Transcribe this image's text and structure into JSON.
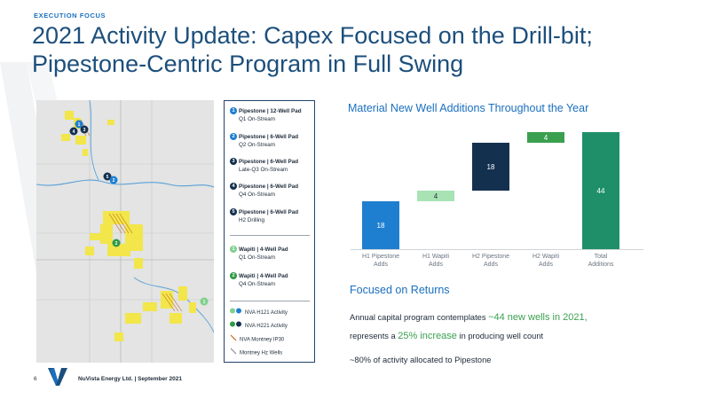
{
  "header": {
    "eyebrow": "EXECUTION FOCUS",
    "title_line1": "2021 Activity Update: Capex Focused on the Drill-bit;",
    "title_line2": "Pipestone-Centric Program in Full Swing"
  },
  "legend": {
    "pads": [
      {
        "num": "1",
        "title": "Pipestone | 12-Well Pad",
        "sub": "Q1 On-Stream",
        "color": "#1e7fd0"
      },
      {
        "num": "2",
        "title": "Pipestone | 6-Well Pad",
        "sub": "Q2 On-Stream",
        "color": "#1e7fd0"
      },
      {
        "num": "3",
        "title": "Pipestone | 6-Well Pad",
        "sub": "Late-Q3 On-Stream",
        "color": "#14304f"
      },
      {
        "num": "4",
        "title": "Pipestone | 6-Well Pad",
        "sub": "Q4 On-Stream",
        "color": "#14304f"
      },
      {
        "num": "5",
        "title": "Pipestone | 6-Well Pad",
        "sub": "H2 Drilling",
        "color": "#14304f"
      },
      {
        "num": "1",
        "title": "Wapiti | 4-Well Pad",
        "sub": "Q1 On-Stream",
        "color": "#7fd08e"
      },
      {
        "num": "2",
        "title": "Wapiti | 4-Well Pad",
        "sub": "Q4 On-Stream",
        "color": "#2e9a45"
      }
    ],
    "keys": [
      {
        "label": "NVA H121 Activity"
      },
      {
        "label": "NVA H221 Activity"
      },
      {
        "label": "NVA Montney IP30"
      },
      {
        "label": "Montney Hz Wells"
      }
    ]
  },
  "chart_title": "Material New Well Additions Throughout the Year",
  "chart_data": {
    "type": "bar",
    "subtype": "waterfall",
    "categories": [
      "H1 Pipestone Adds",
      "H1 Wapiti Adds",
      "H2 Pipestone Adds",
      "H2 Wapiti Adds",
      "Total Additions"
    ],
    "values": [
      18,
      4,
      18,
      4,
      44
    ],
    "bases": [
      0,
      18,
      22,
      40,
      0
    ],
    "value_labels": [
      "18",
      "4",
      "18",
      "4",
      "44"
    ],
    "colors": [
      "#1e7fd0",
      "#a8e3b4",
      "#14304f",
      "#3aa050",
      "#1f8f6a"
    ],
    "ylim": [
      0,
      44
    ],
    "grid": false
  },
  "returns": {
    "title": "Focused on Returns",
    "line1_a": "Annual capital program contemplates ",
    "line1_hl": "~44 new wells in 2021,",
    "line2_a": "represents a ",
    "line2_hl": "25% increase",
    "line2_b": " in producing well count",
    "line3": "~80% of activity allocated to Pipestone"
  },
  "footer": {
    "page": "6",
    "company": "NuVista Energy Ltd. | September 2021"
  }
}
